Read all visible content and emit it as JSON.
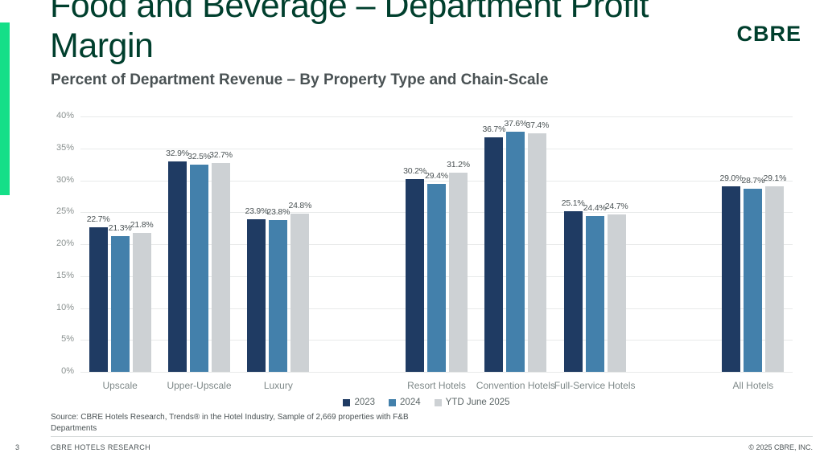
{
  "slide": {
    "title_lines": [
      "Food and Beverage – Department Profit",
      "Margin"
    ],
    "subtitle": "Percent of Department Revenue – By Property Type and Chain-Scale",
    "logo_text": "CBRE",
    "source_lines": [
      "Source: CBRE Hotels Research, Trends® in the Hotel Industry, Sample of 2,669 properties with F&B",
      "Departments"
    ],
    "footer": {
      "page_number": "3",
      "left_text": "CBRE HOTELS RESEARCH",
      "right_text": "© 2025 CBRE, INC."
    }
  },
  "colors": {
    "accent_green": "#15DF88",
    "brand_dark_green": "#003F2D",
    "series_2023": "#1F3B63",
    "series_2024": "#4380AB",
    "series_ytd": "#CDD1D4",
    "gridline": "#E8EAEA",
    "text_gray": "#4A5254"
  },
  "chart_data": {
    "type": "bar",
    "title": "Food and Beverage – Department Profit Margin",
    "subtitle": "Percent of Department Revenue – By Property Type and Chain-Scale",
    "categories": [
      "Upscale",
      "Upper-Upscale",
      "Luxury",
      "Resort Hotels",
      "Convention Hotels",
      "Full-Service Hotels",
      "All Hotels"
    ],
    "series": [
      {
        "name": "2023",
        "color": "#1F3B63",
        "values": [
          22.7,
          32.9,
          23.9,
          30.2,
          36.7,
          25.1,
          29.0
        ]
      },
      {
        "name": "2024",
        "color": "#4380AB",
        "values": [
          21.3,
          32.5,
          23.8,
          29.4,
          37.6,
          24.4,
          28.7
        ]
      },
      {
        "name": "YTD June 2025",
        "color": "#CDD1D4",
        "values": [
          21.8,
          32.7,
          24.8,
          31.2,
          37.4,
          24.7,
          29.1
        ]
      }
    ],
    "ylabel": "",
    "xlabel": "",
    "ylim": [
      0,
      40
    ],
    "ytick_step": 5,
    "ytick_suffix": "%",
    "value_label_decimals": 1,
    "value_label_suffix": "%",
    "grid": "horizontal",
    "legend_position": "bottom-center",
    "category_slots": [
      0,
      1,
      2,
      4,
      5,
      6,
      8
    ],
    "total_slots": 9
  }
}
